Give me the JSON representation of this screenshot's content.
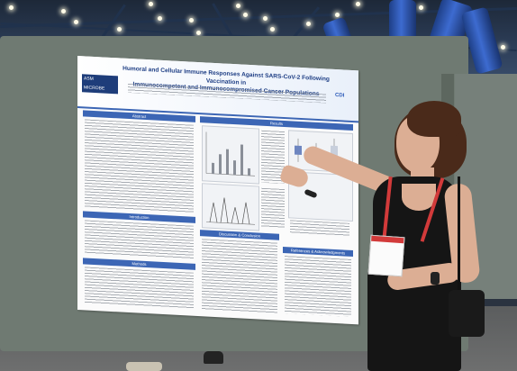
{
  "poster": {
    "title_line1": "Humoral and Cellular Immune Responses Against SARS-CoV-2 Following Vaccination in",
    "title_line2": "Immunocompetent and Immunocompromised Cancer Populations",
    "logo_line1": "ASM",
    "logo_line2": "MICROBE",
    "right_logo": "CDI",
    "sections": {
      "abstract": "Abstract",
      "results": "Results",
      "introduction": "Introduction",
      "methods": "Methods",
      "discussion": "Discussion & Conclusion",
      "references": "References & Acknowledgments"
    }
  },
  "colors": {
    "poster_accent": "#3c66b5",
    "dress": "#151515",
    "lanyard": "#d23a3a",
    "ceiling_pillars": "#2f5bc0"
  }
}
